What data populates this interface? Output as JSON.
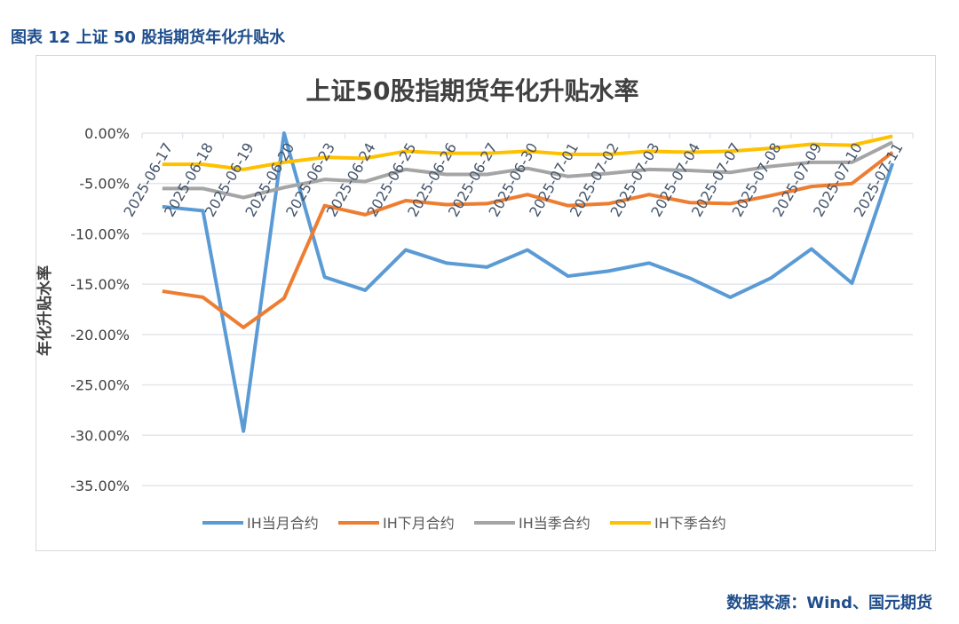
{
  "figure_title": "图表 12  上证 50 股指期货年化升贴水",
  "source": "数据来源：Wind、国元期货",
  "chart_data": {
    "type": "line",
    "title": "上证50股指期货年化升贴水率",
    "ylabel": "年化升贴水率",
    "xlabel": "",
    "ylim": [
      -35,
      0
    ],
    "yticks": [
      "0.00%",
      "-5.00%",
      "-10.00%",
      "-15.00%",
      "-20.00%",
      "-25.00%",
      "-30.00%",
      "-35.00%"
    ],
    "grid": true,
    "legend": "bottom",
    "categories": [
      "2025-06-17",
      "2025-06-18",
      "2025-06-19",
      "2025-06-20",
      "2025-06-23",
      "2025-06-24",
      "2025-06-25",
      "2025-06-26",
      "2025-06-27",
      "2025-06-30",
      "2025-07-01",
      "2025-07-02",
      "2025-07-03",
      "2025-07-04",
      "2025-07-07",
      "2025-07-08",
      "2025-07-09",
      "2025-07-10",
      "2025-07-11"
    ],
    "series": [
      {
        "name": "IH当月合约",
        "color": "#5b9bd5",
        "values": [
          -7.3,
          -7.7,
          -29.6,
          0.0,
          -14.3,
          -15.6,
          -11.6,
          -12.9,
          -13.3,
          -11.6,
          -14.2,
          -13.7,
          -12.9,
          -14.4,
          -16.3,
          -14.4,
          -11.5,
          -14.9,
          -3.0
        ]
      },
      {
        "name": "IH下月合约",
        "color": "#ed7d31",
        "values": [
          -15.7,
          -16.3,
          -19.3,
          -16.4,
          -7.2,
          -8.1,
          -6.7,
          -7.1,
          -7.0,
          -6.1,
          -7.2,
          -7.0,
          -6.1,
          -6.9,
          -7.0,
          -6.2,
          -5.3,
          -5.0,
          -1.9
        ]
      },
      {
        "name": "IH当季合约",
        "color": "#a5a5a5",
        "values": [
          -5.5,
          -5.5,
          -6.4,
          -5.4,
          -4.6,
          -4.8,
          -3.6,
          -4.1,
          -4.1,
          -3.5,
          -4.3,
          -4.0,
          -3.6,
          -3.7,
          -3.9,
          -3.3,
          -2.9,
          -2.9,
          -0.9
        ]
      },
      {
        "name": "IH下季合约",
        "color": "#ffc000",
        "values": [
          -3.1,
          -3.1,
          -3.6,
          -2.9,
          -2.4,
          -2.5,
          -1.8,
          -2.0,
          -2.0,
          -1.8,
          -2.1,
          -2.1,
          -1.8,
          -1.9,
          -1.8,
          -1.5,
          -1.1,
          -1.2,
          -0.3
        ]
      }
    ]
  }
}
